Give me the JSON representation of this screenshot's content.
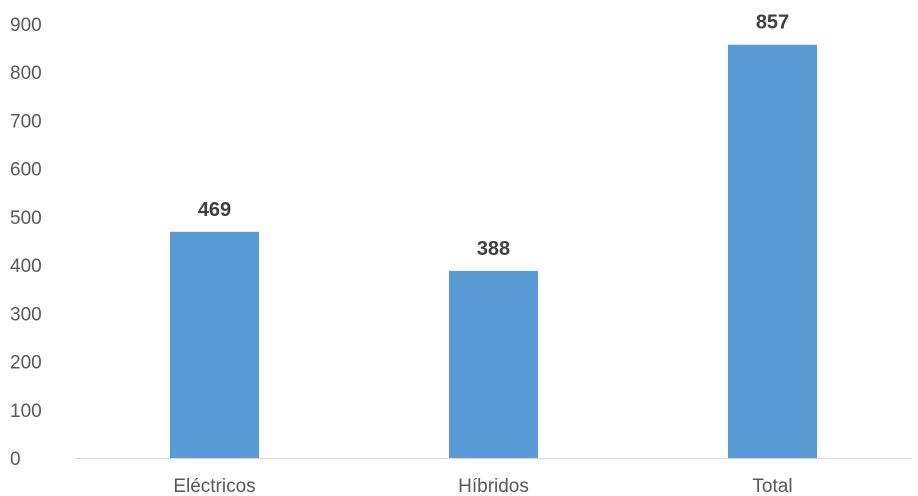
{
  "chart_data": {
    "type": "bar",
    "categories": [
      "Eléctricos",
      "Híbridos",
      "Total"
    ],
    "values": [
      469,
      388,
      857
    ],
    "title": "",
    "xlabel": "",
    "ylabel": "",
    "ylim": [
      0,
      900
    ],
    "yticks": [
      0,
      100,
      200,
      300,
      400,
      500,
      600,
      700,
      800,
      900
    ],
    "grid": false,
    "legend": "none",
    "data_labels": true,
    "colors": {
      "bar": "#5b9bd5",
      "axis": "#d9d9d9",
      "tick_text": "#595959",
      "data_label_text": "#404040"
    }
  }
}
